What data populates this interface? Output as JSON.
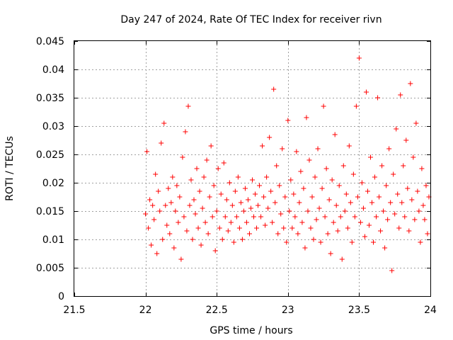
{
  "chart_data": {
    "type": "scatter",
    "title": "Day 247 of 2024, Rate Of TEC Index for receiver rivn",
    "xlabel": "GPS time / hours",
    "ylabel": "ROTI / TECUs",
    "xlim": [
      21.5,
      24
    ],
    "ylim": [
      0,
      0.045
    ],
    "xticks": [
      21.5,
      22,
      22.5,
      23,
      23.5,
      24
    ],
    "xtick_labels": [
      "21.5",
      "22",
      "22.5",
      "23",
      "23.5",
      "24"
    ],
    "yticks": [
      0,
      0.005,
      0.01,
      0.015,
      0.02,
      0.025,
      0.03,
      0.035,
      0.04,
      0.045
    ],
    "ytick_labels": [
      "0",
      "0.005",
      "0.01",
      "0.015",
      "0.02",
      "0.025",
      "0.03",
      "0.035",
      "0.04",
      "0.045"
    ],
    "grid": true,
    "marker": "+",
    "color": "#ff0000",
    "series": [
      {
        "name": "rivn",
        "points": [
          [
            22.0,
            0.0145
          ],
          [
            22.01,
            0.0255
          ],
          [
            22.02,
            0.012
          ],
          [
            22.03,
            0.017
          ],
          [
            22.04,
            0.009
          ],
          [
            22.05,
            0.016
          ],
          [
            22.06,
            0.0135
          ],
          [
            22.07,
            0.0215
          ],
          [
            22.08,
            0.0075
          ],
          [
            22.09,
            0.0185
          ],
          [
            22.1,
            0.015
          ],
          [
            22.11,
            0.027
          ],
          [
            22.12,
            0.01
          ],
          [
            22.13,
            0.0305
          ],
          [
            22.14,
            0.016
          ],
          [
            22.15,
            0.0125
          ],
          [
            22.16,
            0.019
          ],
          [
            22.17,
            0.011
          ],
          [
            22.18,
            0.0165
          ],
          [
            22.19,
            0.021
          ],
          [
            22.2,
            0.0085
          ],
          [
            22.21,
            0.015
          ],
          [
            22.22,
            0.0195
          ],
          [
            22.23,
            0.013
          ],
          [
            22.24,
            0.0175
          ],
          [
            22.25,
            0.0065
          ],
          [
            22.26,
            0.0245
          ],
          [
            22.27,
            0.014
          ],
          [
            22.28,
            0.029
          ],
          [
            22.29,
            0.0115
          ],
          [
            22.3,
            0.0335
          ],
          [
            22.31,
            0.016
          ],
          [
            22.32,
            0.0205
          ],
          [
            22.33,
            0.01
          ],
          [
            22.34,
            0.017
          ],
          [
            22.35,
            0.0145
          ],
          [
            22.36,
            0.0225
          ],
          [
            22.37,
            0.012
          ],
          [
            22.38,
            0.0185
          ],
          [
            22.39,
            0.009
          ],
          [
            22.4,
            0.0155
          ],
          [
            22.41,
            0.021
          ],
          [
            22.42,
            0.013
          ],
          [
            22.43,
            0.024
          ],
          [
            22.44,
            0.011
          ],
          [
            22.45,
            0.0175
          ],
          [
            22.46,
            0.0265
          ],
          [
            22.47,
            0.014
          ],
          [
            22.48,
            0.0195
          ],
          [
            22.49,
            0.008
          ],
          [
            22.5,
            0.015
          ],
          [
            22.51,
            0.0225
          ],
          [
            22.52,
            0.012
          ],
          [
            22.53,
            0.018
          ],
          [
            22.54,
            0.01
          ],
          [
            22.55,
            0.0235
          ],
          [
            22.56,
            0.014
          ],
          [
            22.57,
            0.017
          ],
          [
            22.58,
            0.0115
          ],
          [
            22.59,
            0.02
          ],
          [
            22.6,
            0.013
          ],
          [
            22.61,
            0.016
          ],
          [
            22.62,
            0.0095
          ],
          [
            22.63,
            0.0185
          ],
          [
            22.64,
            0.014
          ],
          [
            22.65,
            0.021
          ],
          [
            22.66,
            0.012
          ],
          [
            22.67,
            0.0165
          ],
          [
            22.68,
            0.01
          ],
          [
            22.69,
            0.015
          ],
          [
            22.7,
            0.019
          ],
          [
            22.71,
            0.013
          ],
          [
            22.72,
            0.017
          ],
          [
            22.73,
            0.011
          ],
          [
            22.74,
            0.0155
          ],
          [
            22.75,
            0.0205
          ],
          [
            22.76,
            0.014
          ],
          [
            22.77,
            0.018
          ],
          [
            22.78,
            0.012
          ],
          [
            22.79,
            0.016
          ],
          [
            22.8,
            0.0195
          ],
          [
            22.81,
            0.014
          ],
          [
            22.82,
            0.0265
          ],
          [
            22.83,
            0.0175
          ],
          [
            22.84,
            0.0125
          ],
          [
            22.85,
            0.021
          ],
          [
            22.86,
            0.0155
          ],
          [
            22.87,
            0.028
          ],
          [
            22.88,
            0.0185
          ],
          [
            22.89,
            0.013
          ],
          [
            22.9,
            0.0365
          ],
          [
            22.91,
            0.0165
          ],
          [
            22.92,
            0.023
          ],
          [
            22.93,
            0.011
          ],
          [
            22.94,
            0.0195
          ],
          [
            22.95,
            0.0145
          ],
          [
            22.96,
            0.026
          ],
          [
            22.97,
            0.012
          ],
          [
            22.98,
            0.0175
          ],
          [
            22.99,
            0.0095
          ],
          [
            23.0,
            0.031
          ],
          [
            23.01,
            0.015
          ],
          [
            23.02,
            0.0205
          ],
          [
            23.03,
            0.012
          ],
          [
            23.04,
            0.018
          ],
          [
            23.05,
            0.014
          ],
          [
            23.06,
            0.0255
          ],
          [
            23.07,
            0.011
          ],
          [
            23.08,
            0.0165
          ],
          [
            23.09,
            0.022
          ],
          [
            23.1,
            0.013
          ],
          [
            23.11,
            0.019
          ],
          [
            23.12,
            0.0085
          ],
          [
            23.13,
            0.0315
          ],
          [
            23.14,
            0.015
          ],
          [
            23.15,
            0.024
          ],
          [
            23.16,
            0.012
          ],
          [
            23.17,
            0.0175
          ],
          [
            23.18,
            0.01
          ],
          [
            23.19,
            0.021
          ],
          [
            23.2,
            0.0135
          ],
          [
            23.21,
            0.026
          ],
          [
            23.22,
            0.0155
          ],
          [
            23.23,
            0.0095
          ],
          [
            23.24,
            0.019
          ],
          [
            23.25,
            0.0335
          ],
          [
            23.26,
            0.014
          ],
          [
            23.27,
            0.0225
          ],
          [
            23.28,
            0.011
          ],
          [
            23.29,
            0.017
          ],
          [
            23.3,
            0.0075
          ],
          [
            23.31,
            0.0205
          ],
          [
            23.32,
            0.013
          ],
          [
            23.33,
            0.0285
          ],
          [
            23.34,
            0.016
          ],
          [
            23.35,
            0.0115
          ],
          [
            23.36,
            0.0195
          ],
          [
            23.37,
            0.014
          ],
          [
            23.38,
            0.0065
          ],
          [
            23.39,
            0.023
          ],
          [
            23.4,
            0.015
          ],
          [
            23.41,
            0.018
          ],
          [
            23.42,
            0.012
          ],
          [
            23.43,
            0.0265
          ],
          [
            23.44,
            0.0165
          ],
          [
            23.45,
            0.0095
          ],
          [
            23.46,
            0.0215
          ],
          [
            23.47,
            0.014
          ],
          [
            23.48,
            0.0335
          ],
          [
            23.49,
            0.0175
          ],
          [
            23.5,
            0.042
          ],
          [
            23.51,
            0.013
          ],
          [
            23.52,
            0.02
          ],
          [
            23.53,
            0.0155
          ],
          [
            23.54,
            0.0105
          ],
          [
            23.55,
            0.036
          ],
          [
            23.56,
            0.0185
          ],
          [
            23.57,
            0.0125
          ],
          [
            23.58,
            0.0245
          ],
          [
            23.59,
            0.0165
          ],
          [
            23.6,
            0.0095
          ],
          [
            23.61,
            0.021
          ],
          [
            23.62,
            0.014
          ],
          [
            23.63,
            0.035
          ],
          [
            23.64,
            0.0175
          ],
          [
            23.65,
            0.0115
          ],
          [
            23.66,
            0.023
          ],
          [
            23.67,
            0.015
          ],
          [
            23.68,
            0.0085
          ],
          [
            23.69,
            0.0195
          ],
          [
            23.7,
            0.0135
          ],
          [
            23.71,
            0.026
          ],
          [
            23.72,
            0.0165
          ],
          [
            23.73,
            0.0045
          ],
          [
            23.74,
            0.0215
          ],
          [
            23.75,
            0.0145
          ],
          [
            23.76,
            0.0295
          ],
          [
            23.77,
            0.018
          ],
          [
            23.78,
            0.012
          ],
          [
            23.79,
            0.0355
          ],
          [
            23.8,
            0.0165
          ],
          [
            23.81,
            0.023
          ],
          [
            23.82,
            0.014
          ],
          [
            23.83,
            0.0275
          ],
          [
            23.84,
            0.019
          ],
          [
            23.85,
            0.0115
          ],
          [
            23.86,
            0.0375
          ],
          [
            23.87,
            0.017
          ],
          [
            23.88,
            0.0245
          ],
          [
            23.89,
            0.0135
          ],
          [
            23.9,
            0.0305
          ],
          [
            23.91,
            0.0185
          ],
          [
            23.92,
            0.015
          ],
          [
            23.93,
            0.0095
          ],
          [
            23.94,
            0.0225
          ],
          [
            23.95,
            0.016
          ],
          [
            23.96,
            0.0135
          ],
          [
            23.97,
            0.0195
          ],
          [
            23.98,
            0.011
          ],
          [
            23.99,
            0.0175
          ]
        ]
      }
    ]
  }
}
